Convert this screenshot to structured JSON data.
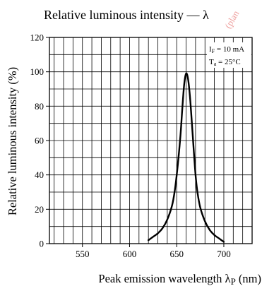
{
  "chart_data": {
    "type": "line",
    "title": "Relative luminous intensity — λ",
    "xlabel": "Peak emission wavelength λ",
    "xlabel_subscript": "P",
    "xlabel_unit": "(nm)",
    "ylabel": "Relative luminous intensity   (%)",
    "xlim": [
      515,
      730
    ],
    "ylim": [
      0,
      120
    ],
    "x_ticks": [
      550,
      600,
      650,
      700
    ],
    "y_ticks": [
      0,
      20,
      40,
      60,
      80,
      100,
      120
    ],
    "grid": true,
    "annotation": {
      "line1_main": "I",
      "line1_sub": "F",
      "line1_rest": " = 10 mA",
      "line2_main": "T",
      "line2_sub": "a",
      "line2_rest": " = 25°C"
    },
    "watermark": "(plan",
    "series": [
      {
        "x": [
          620,
          625,
          630,
          635,
          640,
          645,
          648,
          651,
          654,
          656,
          658,
          660,
          662,
          664,
          666,
          668,
          670,
          672,
          675,
          680,
          685,
          690,
          695,
          700
        ],
        "y": [
          2,
          4,
          6,
          9,
          14,
          22,
          31,
          45,
          63,
          79,
          93,
          99,
          96,
          86,
          71,
          55,
          40,
          30,
          21,
          13,
          8,
          5,
          3,
          1
        ]
      }
    ],
    "colors": {
      "curve": "#000000",
      "grid": "#000000",
      "watermark": "#e0514d"
    }
  }
}
